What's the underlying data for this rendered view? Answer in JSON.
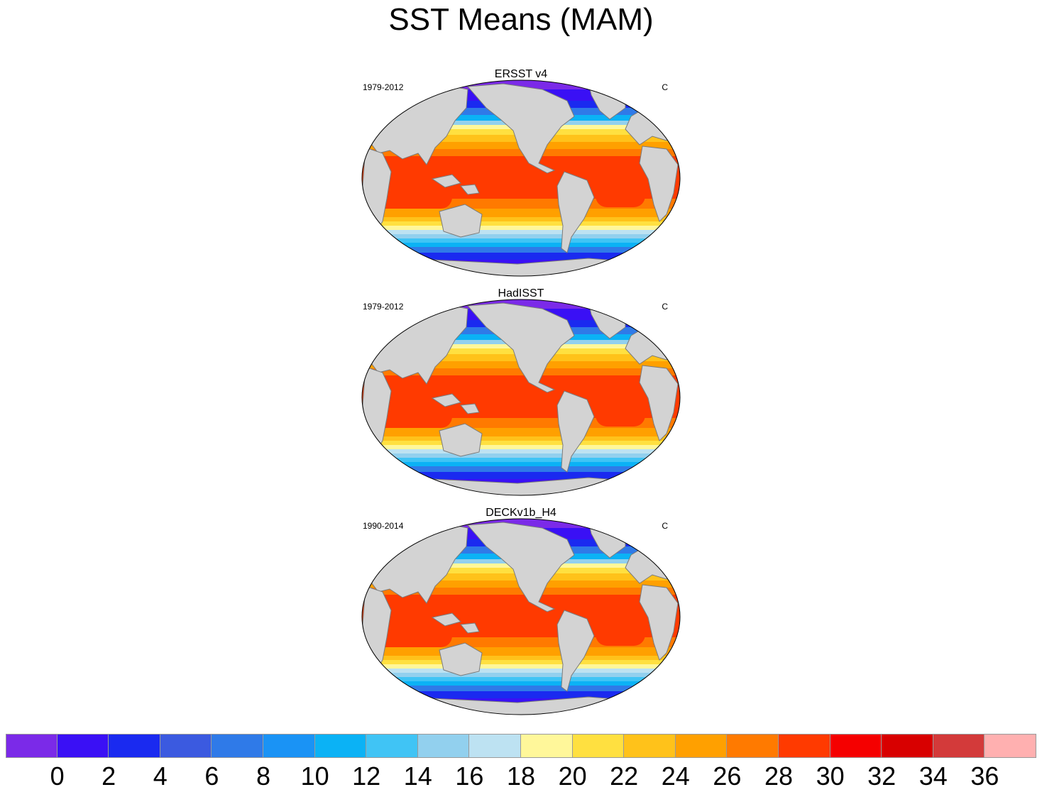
{
  "title": "SST Means (MAM)",
  "panels": [
    {
      "title": "ERSST v4",
      "period": "1979-2012",
      "units": "C"
    },
    {
      "title": "HadISST",
      "period": "1979-2012",
      "units": "C"
    },
    {
      "title": "DECKv1b_H4",
      "period": "1990-2014",
      "units": "C"
    }
  ],
  "colorbar": {
    "colors": [
      "#7b2ae8",
      "#3a10f5",
      "#1a2af0",
      "#3b5ae0",
      "#2f7ae8",
      "#1a93f5",
      "#0bb2f5",
      "#40c4f5",
      "#92d0ee",
      "#bde2f2",
      "#fff79a",
      "#ffe040",
      "#ffc21a",
      "#ffa000",
      "#ff7a00",
      "#ff3a00",
      "#f50000",
      "#d80000",
      "#d33a3a",
      "#ffb0b0"
    ],
    "labels": [
      "0",
      "2",
      "4",
      "6",
      "8",
      "10",
      "12",
      "14",
      "16",
      "18",
      "20",
      "22",
      "24",
      "26",
      "28",
      "30",
      "32",
      "34",
      "36"
    ]
  },
  "colors": {
    "land": "#d3d3d3",
    "coast": "#7a7a7a",
    "outline": "#000000"
  }
}
